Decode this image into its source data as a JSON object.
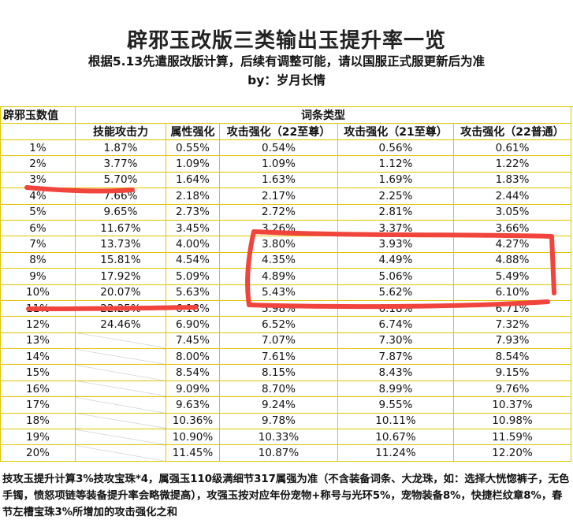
{
  "header": {
    "title": "辟邪玉改版三类输出玉提升率一览",
    "subtitle": "根据5.13先遣服改版计算，后续有调整可能，请以国服正式服更新后为准",
    "byline": "by：岁月长情"
  },
  "table": {
    "row_header": "辟邪玉数值",
    "group_header": "词条类型",
    "columns": [
      "技能攻击力",
      "属性强化",
      "攻击强化（22至尊）",
      "攻击强化（21至尊）",
      "攻击强化（22普通）"
    ],
    "rows": [
      {
        "v": "1%",
        "c": [
          "1.87%",
          "0.55%",
          "0.54%",
          "0.56%",
          "0.61%"
        ]
      },
      {
        "v": "2%",
        "c": [
          "3.77%",
          "1.09%",
          "1.09%",
          "1.12%",
          "1.22%"
        ]
      },
      {
        "v": "3%",
        "c": [
          "5.70%",
          "1.64%",
          "1.63%",
          "1.69%",
          "1.83%"
        ]
      },
      {
        "v": "4%",
        "c": [
          "7.66%",
          "2.18%",
          "2.17%",
          "2.25%",
          "2.44%"
        ]
      },
      {
        "v": "5%",
        "c": [
          "9.65%",
          "2.73%",
          "2.72%",
          "2.81%",
          "3.05%"
        ]
      },
      {
        "v": "6%",
        "c": [
          "11.67%",
          "3.45%",
          "3.26%",
          "3.37%",
          "3.66%"
        ]
      },
      {
        "v": "7%",
        "c": [
          "13.73%",
          "4.00%",
          "3.80%",
          "3.93%",
          "4.27%"
        ]
      },
      {
        "v": "8%",
        "c": [
          "15.81%",
          "4.54%",
          "4.35%",
          "4.49%",
          "4.88%"
        ]
      },
      {
        "v": "9%",
        "c": [
          "17.92%",
          "5.09%",
          "4.89%",
          "5.06%",
          "5.49%"
        ]
      },
      {
        "v": "10%",
        "c": [
          "20.07%",
          "5.63%",
          "5.43%",
          "5.62%",
          "6.10%"
        ]
      },
      {
        "v": "11%",
        "c": [
          "22.25%",
          "6.18%",
          "5.98%",
          "6.18%",
          "6.71%"
        ]
      },
      {
        "v": "12%",
        "c": [
          "24.46%",
          "6.90%",
          "6.52%",
          "6.74%",
          "7.32%"
        ]
      },
      {
        "v": "13%",
        "c": [
          "",
          "7.45%",
          "7.07%",
          "7.30%",
          "7.93%"
        ]
      },
      {
        "v": "14%",
        "c": [
          "",
          "8.00%",
          "7.61%",
          "7.87%",
          "8.54%"
        ]
      },
      {
        "v": "15%",
        "c": [
          "",
          "8.54%",
          "8.15%",
          "8.43%",
          "9.15%"
        ]
      },
      {
        "v": "16%",
        "c": [
          "",
          "9.09%",
          "8.70%",
          "8.99%",
          "9.76%"
        ]
      },
      {
        "v": "17%",
        "c": [
          "",
          "9.63%",
          "9.24%",
          "9.55%",
          "10.37%"
        ]
      },
      {
        "v": "18%",
        "c": [
          "",
          "10.36%",
          "9.78%",
          "10.11%",
          "10.98%"
        ]
      },
      {
        "v": "19%",
        "c": [
          "",
          "10.90%",
          "10.33%",
          "10.67%",
          "11.59%"
        ]
      },
      {
        "v": "20%",
        "c": [
          "",
          "11.45%",
          "10.87%",
          "11.24%",
          "12.20%"
        ]
      }
    ]
  },
  "note": "技攻玉提升计算3%技攻宝珠*4，属强玉110级满细节317属强为准（不含装备词条、大龙珠，如：选择大恍惚裤子，无色手镯，愤怒项链等装备提升率会略微提高），攻强玉按对应年份宠物+称号与光环5%，宠物装备8%，快捷栏纹章8%，春节左槽宝珠3%所增加的攻击强化之和",
  "colors": {
    "grid_line": "#e0c400",
    "annotation": "#f0443c",
    "hatch": "#c8c8c8"
  }
}
